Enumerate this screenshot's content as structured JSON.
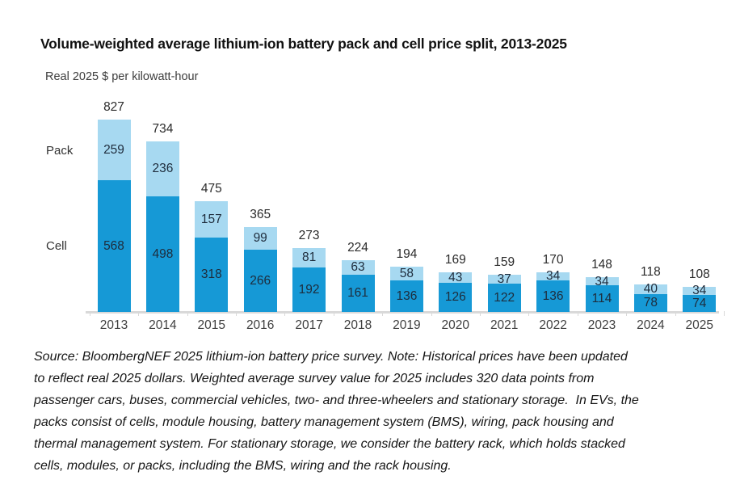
{
  "header": {
    "title": "Volume-weighted average lithium-ion battery pack and cell price split, 2013-2025",
    "subtitle": "Real 2025 $ per kilowatt-hour"
  },
  "series_labels": {
    "pack": "Pack",
    "cell": "Cell"
  },
  "chart_data": {
    "type": "bar",
    "stacked": true,
    "title": "Volume-weighted average lithium-ion battery pack and cell price split, 2013-2025",
    "ylabel": "Real 2025 $ per kilowatt-hour",
    "xlabel": "",
    "categories": [
      "2013",
      "2014",
      "2015",
      "2016",
      "2017",
      "2018",
      "2019",
      "2020",
      "2021",
      "2022",
      "2023",
      "2024",
      "2025"
    ],
    "series": [
      {
        "name": "Cell",
        "color": "#1699d6",
        "values": [
          568,
          498,
          318,
          266,
          192,
          161,
          136,
          126,
          122,
          136,
          114,
          78,
          74
        ]
      },
      {
        "name": "Pack",
        "color": "#a7d9f1",
        "values": [
          259,
          236,
          157,
          99,
          81,
          63,
          58,
          43,
          37,
          34,
          34,
          40,
          34
        ]
      }
    ],
    "totals": [
      827,
      734,
      475,
      365,
      273,
      224,
      194,
      169,
      159,
      170,
      148,
      118,
      108
    ],
    "ylim": [
      0,
      827
    ],
    "grid": false,
    "legend_position": "left-of-first-bar"
  },
  "colors": {
    "cell": "#1699d6",
    "pack": "#a7d9f1",
    "axis_line": "#d9d9d9",
    "value_label": "#1e2c3c",
    "total_label": "#2b2b2b"
  },
  "source_note": {
    "lines": [
      "Source: BloombergNEF 2025 lithium-ion battery price survey. Note: Historical prices have been updated",
      "to reflect real 2025 dollars. Weighted average survey value for 2025 includes 320 data points from",
      "passenger cars, buses, commercial vehicles, two- and three-wheelers and stationary storage.  In EVs, the",
      "packs consist of cells, module housing, battery management system (BMS), wiring, pack housing and",
      "thermal management system. For stationary storage, we consider the battery rack, which holds stacked",
      "cells, modules, or packs, including the BMS, wiring and the rack housing."
    ]
  }
}
